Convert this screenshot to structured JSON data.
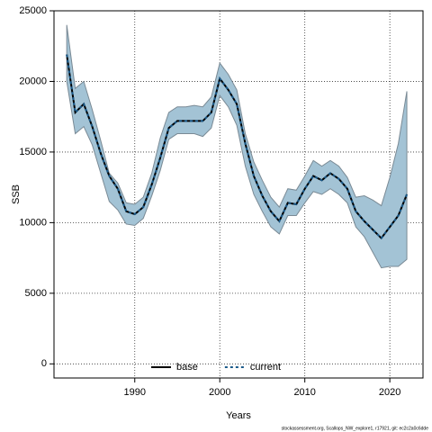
{
  "chart_data": {
    "type": "line",
    "x_label": "Years",
    "y_label": "SSB",
    "footer": "stockassessment.org, Scallops_NW_explore1, r17921, git: ec2c2a0c6dde",
    "x": [
      1982,
      1983,
      1984,
      1985,
      1986,
      1987,
      1988,
      1989,
      1990,
      1991,
      1992,
      1993,
      1994,
      1995,
      1996,
      1997,
      1998,
      1999,
      2000,
      2001,
      2002,
      2003,
      2004,
      2005,
      2006,
      2007,
      2008,
      2009,
      2010,
      2011,
      2012,
      2013,
      2014,
      2015,
      2016,
      2017,
      2018,
      2019,
      2020,
      2021,
      2022
    ],
    "band": {
      "color": "#a3c3d5",
      "edge": "#7a8a95",
      "upper": [
        24000,
        19500,
        20000,
        18000,
        15800,
        13500,
        12800,
        11400,
        11300,
        11800,
        13500,
        16000,
        17800,
        18200,
        18200,
        18300,
        18200,
        18900,
        21300,
        20500,
        19400,
        16300,
        14300,
        13000,
        11800,
        11100,
        12400,
        12300,
        13300,
        14400,
        14000,
        14400,
        14000,
        13200,
        11800,
        11900,
        11600,
        11200,
        13200,
        15600,
        19300
      ],
      "lower": [
        20000,
        16300,
        16800,
        15500,
        13500,
        11500,
        10900,
        9900,
        9800,
        10300,
        11900,
        13700,
        15900,
        16300,
        16300,
        16300,
        16100,
        16700,
        19000,
        18200,
        16900,
        14000,
        12000,
        10800,
        9700,
        9200,
        10500,
        10500,
        11400,
        12200,
        12000,
        12400,
        12000,
        11400,
        9700,
        9000,
        7900,
        6800,
        6900,
        6900,
        7400
      ]
    },
    "series": [
      {
        "name": "base",
        "color": "#000000",
        "dashed": false,
        "values": [
          21900,
          17800,
          18400,
          16800,
          14900,
          13300,
          12400,
          10800,
          10600,
          11100,
          12700,
          14600,
          16700,
          17200,
          17200,
          17200,
          17200,
          17800,
          20200,
          19400,
          18400,
          15600,
          13300,
          11900,
          10800,
          10100,
          11400,
          11300,
          12400,
          13300,
          13000,
          13500,
          13100,
          12400,
          10800,
          10100,
          9500,
          8900,
          9700,
          10500,
          12000
        ]
      },
      {
        "name": "current",
        "color": "#1a5a8a",
        "dashed": true,
        "values": [
          21900,
          17800,
          18400,
          16800,
          14900,
          13300,
          12400,
          10800,
          10600,
          11100,
          12700,
          14600,
          16700,
          17200,
          17200,
          17200,
          17200,
          17800,
          20200,
          19400,
          18400,
          15600,
          13300,
          11900,
          10800,
          10100,
          11400,
          11300,
          12400,
          13300,
          13000,
          13500,
          13100,
          12400,
          10800,
          10100,
          9500,
          8900,
          9700,
          10500,
          12000
        ]
      }
    ],
    "xlim": [
      1980.5,
      2023.9
    ],
    "ylim": [
      -1000,
      25000
    ],
    "xticks": [
      1990,
      2000,
      2010,
      2020
    ],
    "yticks": [
      0,
      5000,
      10000,
      15000,
      20000,
      25000
    ],
    "grid": true,
    "legend": "bottom"
  }
}
